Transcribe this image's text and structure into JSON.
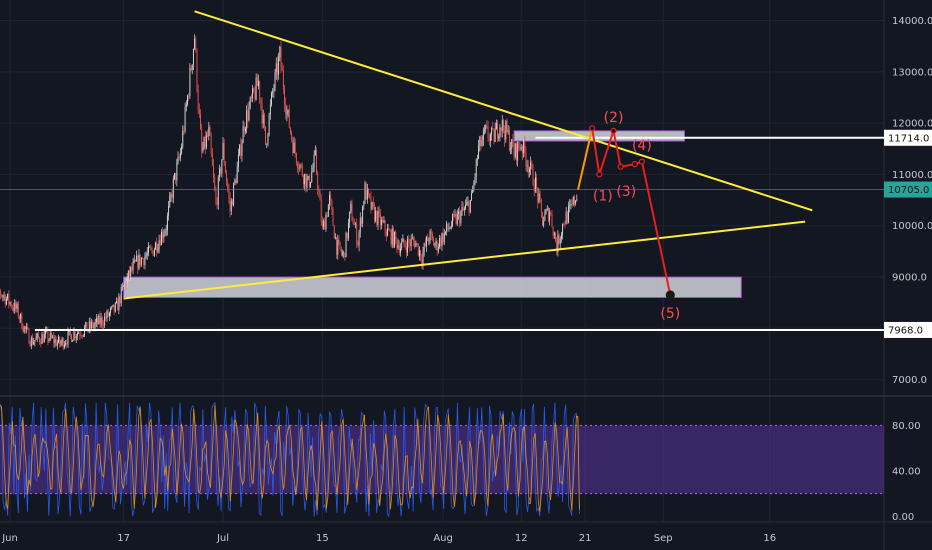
{
  "chart_data": [
    {
      "type": "candlestick",
      "title": "",
      "x_unit": "day offset from Jun 1",
      "x_ticks": [
        {
          "label": "Jun",
          "x": 0
        },
        {
          "label": "17",
          "x": 16
        },
        {
          "label": "Jul",
          "x": 30
        },
        {
          "label": "15",
          "x": 44
        },
        {
          "label": "Aug",
          "x": 61
        },
        {
          "label": "12",
          "x": 72
        },
        {
          "label": "21",
          "x": 81
        },
        {
          "label": "Sep",
          "x": 92
        },
        {
          "label": "16",
          "x": 107
        }
      ],
      "y_ticks": [
        7000,
        8000,
        9000,
        10000,
        11000,
        12000,
        13000,
        14000
      ],
      "y_tick_labels": [
        "7000.0",
        "8000.0",
        "9000.0",
        "10000.0",
        "11000.0",
        "12000.0",
        "13000.0",
        "14000.0"
      ],
      "ylim": [
        6700,
        14400
      ],
      "price_path": [
        [
          -3,
          8900
        ],
        [
          -1,
          8650
        ],
        [
          1,
          8350
        ],
        [
          2,
          8000
        ],
        [
          3,
          7750
        ],
        [
          5,
          7850
        ],
        [
          7,
          7700
        ],
        [
          9,
          7900
        ],
        [
          11,
          8000
        ],
        [
          13,
          8150
        ],
        [
          15,
          8400
        ],
        [
          16,
          8800
        ],
        [
          17,
          9100
        ],
        [
          18,
          9300
        ],
        [
          20,
          9500
        ],
        [
          22,
          10000
        ],
        [
          23,
          10800
        ],
        [
          24,
          11400
        ],
        [
          25,
          12500
        ],
        [
          26,
          13700
        ],
        [
          26.5,
          12400
        ],
        [
          27,
          11400
        ],
        [
          28,
          11800
        ],
        [
          29,
          10400
        ],
        [
          30,
          11500
        ],
        [
          31,
          10300
        ],
        [
          32,
          11100
        ],
        [
          33,
          12000
        ],
        [
          35,
          12800
        ],
        [
          36,
          11600
        ],
        [
          37,
          12600
        ],
        [
          38,
          13300
        ],
        [
          39,
          12200
        ],
        [
          40,
          11500
        ],
        [
          41,
          11100
        ],
        [
          42,
          10800
        ],
        [
          43,
          11300
        ],
        [
          44,
          9900
        ],
        [
          45,
          10500
        ],
        [
          46,
          9600
        ],
        [
          47,
          9400
        ],
        [
          48,
          10300
        ],
        [
          49,
          9700
        ],
        [
          50,
          10700
        ],
        [
          51,
          10300
        ],
        [
          53,
          9900
        ],
        [
          55,
          9600
        ],
        [
          57,
          9700
        ],
        [
          58,
          9400
        ],
        [
          59,
          9800
        ],
        [
          60,
          9600
        ],
        [
          62,
          10000
        ],
        [
          64,
          10300
        ],
        [
          65,
          10500
        ],
        [
          66,
          11500
        ],
        [
          67,
          11800
        ],
        [
          68,
          11700
        ],
        [
          69,
          12000
        ],
        [
          70,
          11800
        ],
        [
          71,
          11400
        ],
        [
          72,
          11600
        ],
        [
          73,
          11200
        ],
        [
          74,
          10800
        ],
        [
          75,
          10100
        ],
        [
          76,
          10300
        ],
        [
          77,
          9600
        ],
        [
          78,
          10100
        ],
        [
          79,
          10300
        ],
        [
          80,
          10700
        ]
      ],
      "series": [
        {
          "name": "",
          "role": "descending trendline",
          "color": "#ffeb3b",
          "points": [
            [
              26,
              14180
            ],
            [
              113,
              10300
            ]
          ]
        },
        {
          "name": "",
          "role": "ascending trendline",
          "color": "#ffeb3b",
          "points": [
            [
              16,
              8580
            ],
            [
              112,
              10080
            ]
          ]
        },
        {
          "name": "",
          "role": "projected wave path",
          "color": "#e91e1e",
          "points": [
            [
              80,
              10700
            ],
            [
              82,
              11900
            ],
            [
              83,
              11000
            ],
            [
              85,
              11850
            ],
            [
              86,
              11150
            ],
            [
              88,
              11200
            ],
            [
              89,
              11250
            ],
            [
              93,
              8650
            ]
          ]
        }
      ],
      "zones": [
        {
          "x": [
            16,
            103
          ],
          "y": [
            8600,
            9000
          ],
          "color": "#d1d4dc"
        },
        {
          "x": [
            71,
            95
          ],
          "y": [
            11650,
            11850
          ],
          "color": "#d1d4dc"
        }
      ],
      "horizontal_levels": [
        {
          "y": 11714,
          "label": "11714.0",
          "color": "#ffffff"
        },
        {
          "y": 7968,
          "label": "7968.0",
          "color": "#ffffff"
        },
        {
          "y": 10705,
          "label": "10705.0",
          "color": "#26a69a"
        }
      ],
      "wave_labels": [
        {
          "text": "(1)",
          "x": 83.5,
          "y": 10570
        },
        {
          "text": "(2)",
          "x": 85,
          "y": 12100
        },
        {
          "text": "(3)",
          "x": 86.8,
          "y": 10660
        },
        {
          "text": "(4)",
          "x": 89,
          "y": 11550
        },
        {
          "text": "(5)",
          "x": 93,
          "y": 8280
        }
      ],
      "grid": true,
      "legend": "none"
    },
    {
      "type": "line",
      "title": "",
      "role": "stochastic oscillator",
      "y_ticks": [
        0,
        40,
        80
      ],
      "y_tick_labels": [
        "0.00",
        "40.00",
        "80.00"
      ],
      "ylim": [
        -5,
        105
      ],
      "band": [
        20,
        80
      ],
      "series": [
        {
          "name": "",
          "color": "#2962ff"
        },
        {
          "name": "",
          "color": "#ff9800"
        }
      ],
      "legend": "none"
    }
  ]
}
